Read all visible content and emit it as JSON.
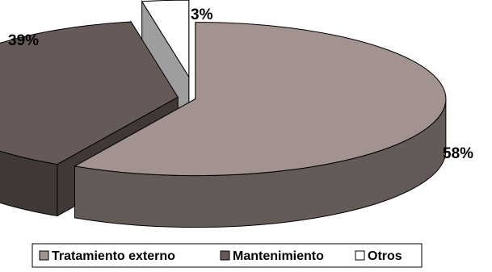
{
  "chart_data": {
    "type": "pie",
    "style": "3d-exploded",
    "slices": [
      {
        "label": "Tratamiento externo",
        "value": 58,
        "value_label": "58%",
        "color": "#a29290"
      },
      {
        "label": "Mantenimiento",
        "value": 39,
        "value_label": "39%",
        "color": "#665a59"
      },
      {
        "label": "Otros",
        "value": 3,
        "value_label": "3%",
        "color": "#ffffff"
      }
    ],
    "legend_position": "bottom",
    "colors": {
      "outline": "#000000",
      "background": "#ffffff"
    }
  }
}
